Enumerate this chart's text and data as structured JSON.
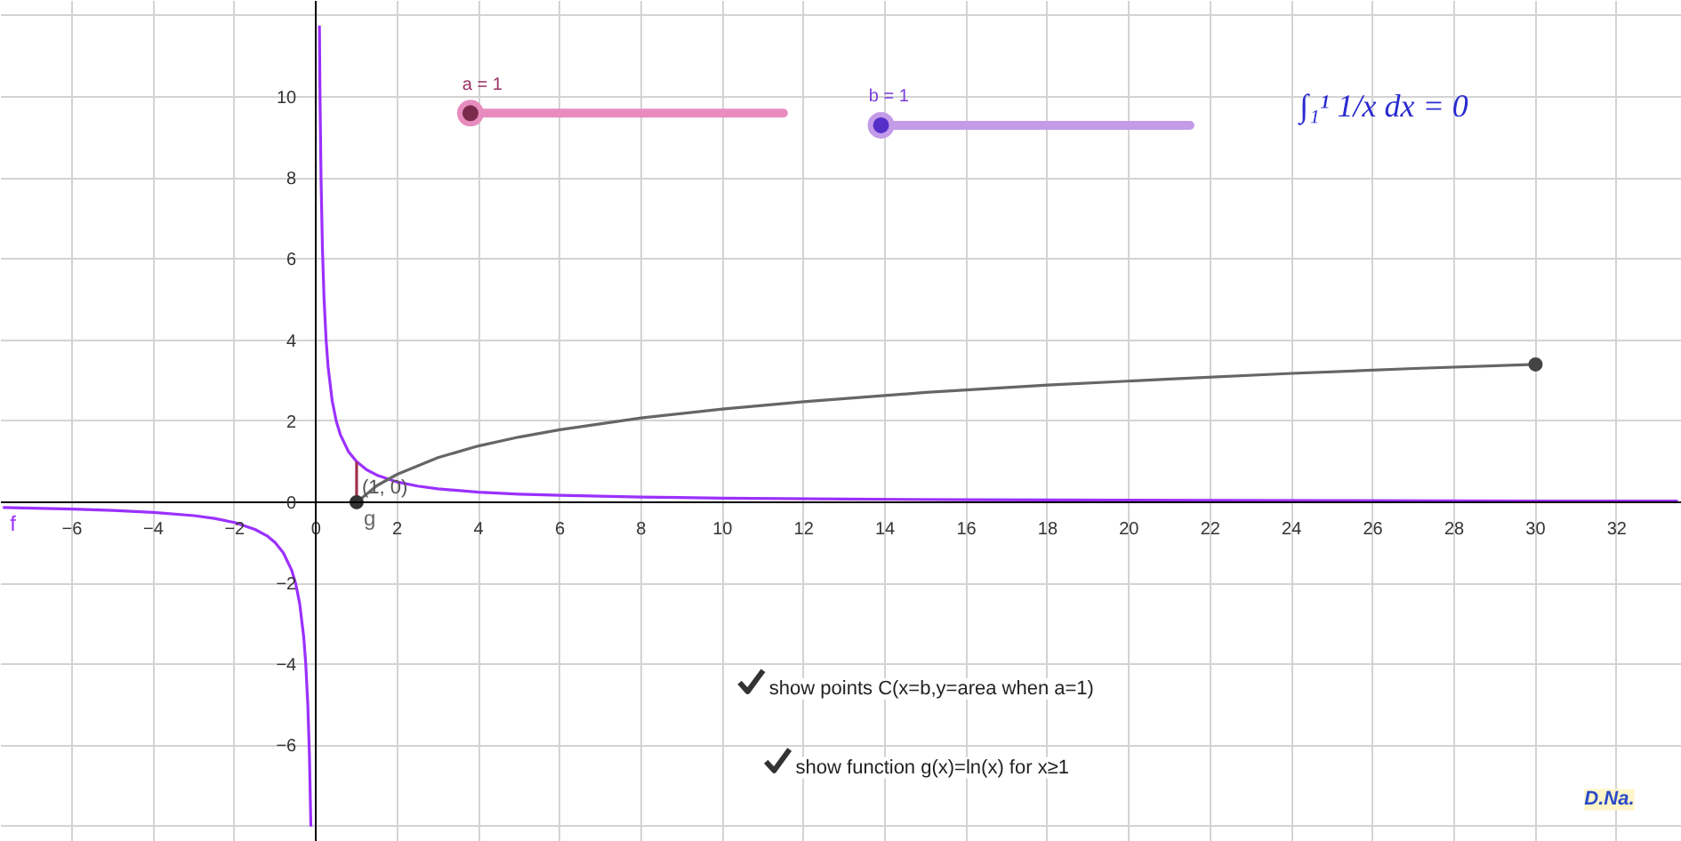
{
  "chart_data": {
    "type": "line",
    "xlim": [
      -7.75,
      33.6
    ],
    "ylim": [
      -8.38,
      12.37
    ],
    "xticks": [
      -6,
      -4,
      -2,
      0,
      2,
      4,
      6,
      8,
      10,
      12,
      14,
      16,
      18,
      20,
      22,
      24,
      26,
      28,
      30,
      32
    ],
    "yticks": [
      {
        "value": -8,
        "label": null
      },
      -6,
      -4,
      -2,
      0,
      2,
      4,
      6,
      8,
      10,
      {
        "value": 12,
        "label": null
      }
    ],
    "grid": true,
    "series": [
      {
        "name": "f",
        "color": "#9b30ff",
        "x": [
          -7.7,
          -6,
          -5,
          -4,
          -3,
          -2.5,
          -2,
          -1.5,
          -1.2,
          -1,
          -0.8,
          -0.6,
          -0.5,
          -0.4,
          -0.3,
          -0.25,
          -0.2,
          -0.16,
          -0.125,
          0,
          0.085,
          0.1,
          0.125,
          0.16,
          0.2,
          0.25,
          0.3,
          0.4,
          0.5,
          0.6,
          0.8,
          1,
          1.25,
          1.5,
          2,
          2.5,
          3,
          4,
          5,
          6,
          8,
          10,
          13,
          16,
          20,
          25,
          30,
          33.5
        ],
        "values": [
          -0.13,
          -0.17,
          -0.2,
          -0.25,
          -0.33,
          -0.4,
          -0.5,
          -0.67,
          -0.83,
          -1,
          -1.25,
          -1.67,
          -2,
          -2.5,
          -3.33,
          -4,
          -5,
          -6.25,
          -8,
          null,
          11.76,
          10,
          8,
          6.25,
          5,
          4,
          3.33,
          2.5,
          2,
          1.67,
          1.25,
          1,
          0.8,
          0.67,
          0.5,
          0.4,
          0.33,
          0.25,
          0.2,
          0.17,
          0.13,
          0.1,
          0.08,
          0.06,
          0.05,
          0.04,
          0.03,
          0.03
        ]
      },
      {
        "name": "g",
        "color": "#666666",
        "x": [
          1,
          1.5,
          2,
          3,
          4,
          5,
          6,
          8,
          10,
          12,
          15,
          18,
          21,
          24,
          27,
          30
        ],
        "values": [
          0,
          0.41,
          0.69,
          1.1,
          1.39,
          1.61,
          1.79,
          2.08,
          2.3,
          2.48,
          2.71,
          2.89,
          3.04,
          3.18,
          3.3,
          3.4
        ]
      },
      {
        "color": "#a0304a",
        "x": [
          1,
          1
        ],
        "values": [
          0,
          1
        ]
      },
      {
        "type": "scatter",
        "color": "#333333",
        "x": [
          1
        ],
        "values": [
          0
        ]
      },
      {
        "type": "scatter",
        "color": "#444444",
        "x": [
          30
        ],
        "values": [
          3.4
        ]
      }
    ],
    "annotations": [
      "a = 1",
      "b = 1",
      "∫₁¹ 1/x dx = 0",
      "show points C(x=b,y=area when a=1)",
      "show function g(x)=ln(x) for x≥1",
      "D.Na.",
      {
        "text": "(1, 0)",
        "x": 1,
        "y": 0
      }
    ]
  }
}
